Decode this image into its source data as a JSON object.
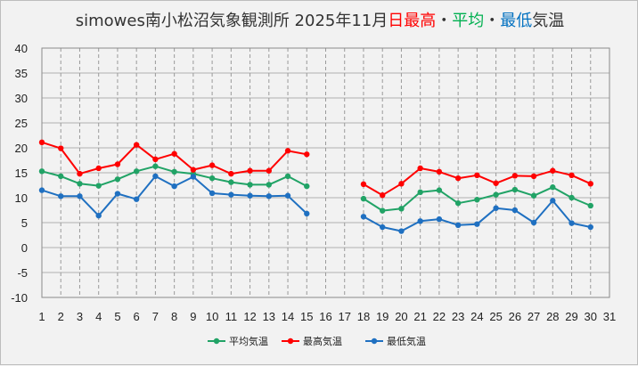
{
  "chart_data": {
    "type": "line",
    "title": {
      "main": "simowes南小松沼気象観測所 2025年11月",
      "parts": [
        {
          "text": "日最高",
          "color": "#ff0000"
        },
        {
          "text": "・",
          "color": "#333333"
        },
        {
          "text": "平均",
          "color": "#00b050"
        },
        {
          "text": "・",
          "color": "#333333"
        },
        {
          "text": "最低",
          "color": "#0070c0"
        },
        {
          "text": "気温",
          "color": "#333333"
        }
      ]
    },
    "xlabel": "",
    "ylabel": "",
    "ylim": [
      -10,
      40
    ],
    "yticks": [
      -10,
      -5,
      0,
      5,
      10,
      15,
      20,
      25,
      30,
      35,
      40
    ],
    "x": [
      1,
      2,
      3,
      4,
      5,
      6,
      7,
      8,
      9,
      10,
      11,
      12,
      13,
      14,
      15,
      16,
      17,
      18,
      19,
      20,
      21,
      22,
      23,
      24,
      25,
      26,
      27,
      28,
      29,
      30,
      31
    ],
    "grid": "vertical dashed at each day, horizontal at each 5",
    "legend_position": "bottom",
    "series": [
      {
        "name": "平均気温",
        "color": "#21a366",
        "values": [
          15.3,
          14.3,
          12.8,
          12.4,
          13.7,
          15.3,
          16.3,
          15.2,
          14.8,
          13.9,
          13.1,
          12.6,
          12.6,
          14.3,
          12.3,
          null,
          null,
          9.8,
          7.4,
          7.8,
          11.1,
          11.5,
          8.9,
          9.6,
          10.6,
          11.6,
          10.4,
          12.1,
          10.0,
          8.4,
          null
        ]
      },
      {
        "name": "最高気温",
        "color": "#ff0000",
        "values": [
          21.1,
          19.9,
          14.8,
          15.9,
          16.7,
          20.6,
          17.7,
          18.8,
          15.6,
          16.5,
          14.8,
          15.4,
          15.4,
          19.4,
          18.7,
          null,
          null,
          12.7,
          10.5,
          12.8,
          15.9,
          15.2,
          13.9,
          14.5,
          12.9,
          14.4,
          14.3,
          15.4,
          14.5,
          12.8,
          null
        ]
      },
      {
        "name": "最低気温",
        "color": "#1f70c1",
        "values": [
          11.5,
          10.3,
          10.3,
          6.4,
          10.8,
          9.7,
          14.3,
          12.3,
          14.2,
          10.9,
          10.6,
          10.4,
          10.3,
          10.4,
          6.8,
          null,
          null,
          6.2,
          4.1,
          3.3,
          5.3,
          5.7,
          4.5,
          4.7,
          7.9,
          7.5,
          5.0,
          9.4,
          4.9,
          4.1,
          null
        ]
      }
    ]
  }
}
